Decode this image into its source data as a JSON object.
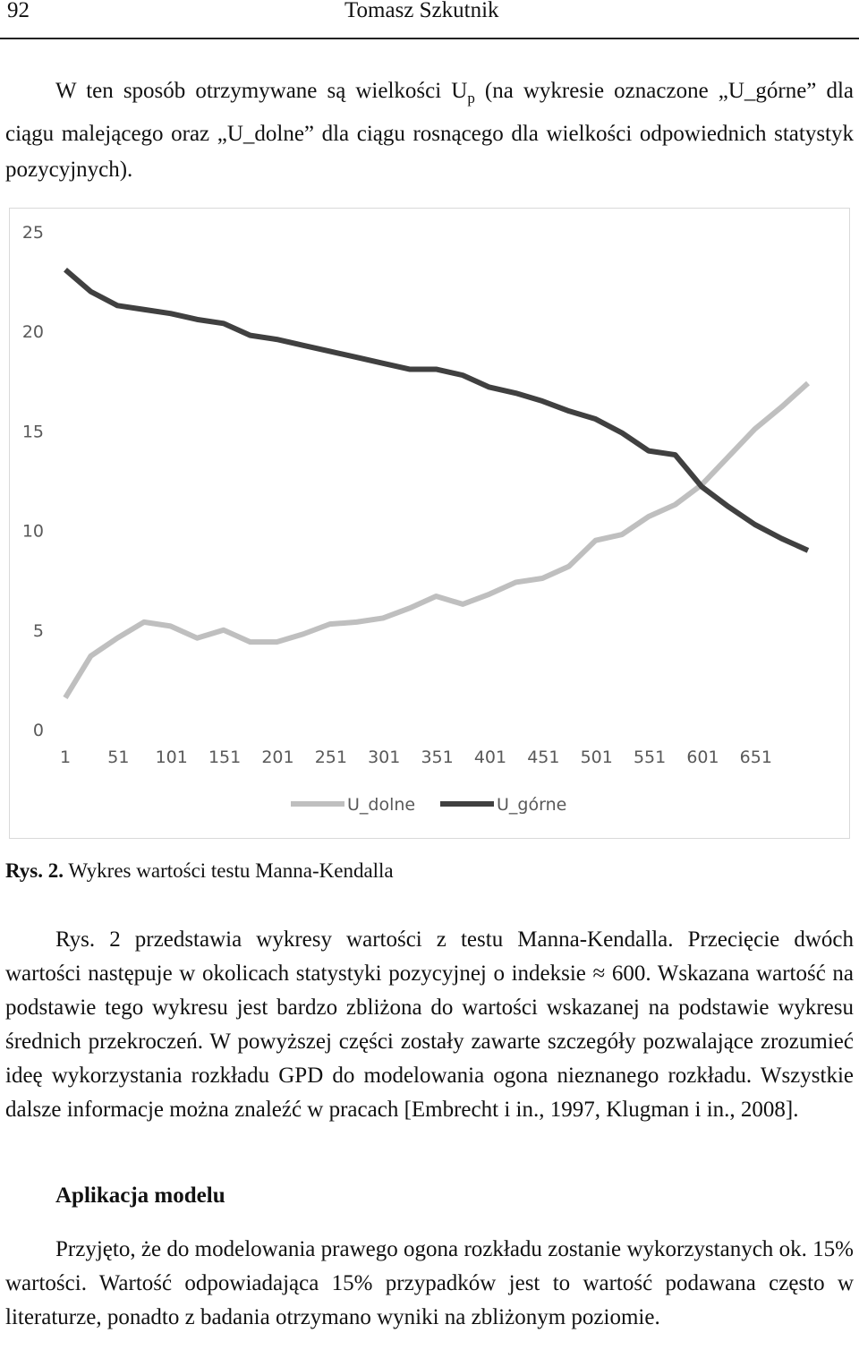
{
  "header": {
    "page_number": "92",
    "author": "Tomasz Szkutnik"
  },
  "paragraph1": {
    "before": "W ten sposób otrzymywane są wielkości U",
    "subscript": "p",
    "after": " (na wykresie oznaczone „U_górne” dla ciągu malejącego oraz „U_dolne” dla ciągu rosnącego dla wielkości odpowiednich statystyk pozycyjnych)."
  },
  "chart_data": {
    "type": "line",
    "x": [
      1,
      25,
      50,
      75,
      100,
      125,
      150,
      175,
      200,
      225,
      250,
      275,
      300,
      325,
      350,
      375,
      400,
      425,
      450,
      475,
      500,
      525,
      550,
      575,
      600,
      625,
      650,
      675,
      700
    ],
    "xlim": [
      1,
      700
    ],
    "xticks": [
      1,
      51,
      101,
      151,
      201,
      251,
      301,
      351,
      401,
      451,
      501,
      551,
      601,
      651
    ],
    "ylim": [
      0,
      25
    ],
    "yticks": [
      0,
      5,
      10,
      15,
      20,
      25
    ],
    "grid": false,
    "legend": "bottom",
    "series": [
      {
        "name": "U_dolne",
        "color": "#bfbfbf",
        "values": [
          1.6,
          3.7,
          4.6,
          5.4,
          5.2,
          4.6,
          5.0,
          4.4,
          4.4,
          4.8,
          5.3,
          5.4,
          5.6,
          6.1,
          6.7,
          6.3,
          6.8,
          7.4,
          7.6,
          8.2,
          9.5,
          9.8,
          10.7,
          11.3,
          12.3,
          13.7,
          15.1,
          16.2,
          17.4
        ]
      },
      {
        "name": "U_górne",
        "color": "#404040",
        "values": [
          23.1,
          22.0,
          21.3,
          21.1,
          20.9,
          20.6,
          20.4,
          19.8,
          19.6,
          19.3,
          19.0,
          18.7,
          18.4,
          18.1,
          18.1,
          17.8,
          17.2,
          16.9,
          16.5,
          16.0,
          15.6,
          14.9,
          14.0,
          13.8,
          12.2,
          11.2,
          10.3,
          9.6,
          9.0
        ]
      }
    ]
  },
  "caption": {
    "label": "Rys. 2.",
    "text": " Wykres wartości testu Manna-Kendalla"
  },
  "paragraph2": "Rys. 2 przedstawia wykresy wartości z testu Manna-Kendalla. Przecięcie dwóch wartości następuje w okolicach statystyki pozycyjnej o indeksie ≈ 600. Wskazana wartość na podstawie tego wykresu jest bardzo zbliżona do wartości wskazanej na podstawie wykresu średnich przekroczeń. W powyższej części zostały zawarte szczegóły pozwalające zrozumieć ideę wykorzystania rozkładu GPD do modelowania ogona nieznanego rozkładu. Wszystkie dalsze informacje można znaleźć w pracach [Embrecht i in., 1997, Klugman i in., 2008].",
  "heading": "Aplikacja modelu",
  "paragraph3": "Przyjęto, że do modelowania prawego ogona rozkładu zostanie wykorzystanych ok. 15% wartości. Wartość odpowiadająca 15% przypadków jest to wartość podawana często w literaturze, ponadto z badania otrzymano wyniki na zbliżonym poziomie."
}
